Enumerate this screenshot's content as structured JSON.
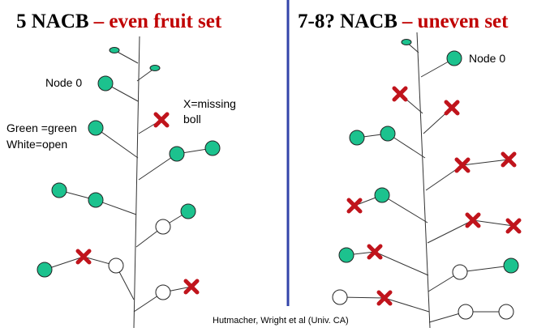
{
  "left": {
    "title_main": "5 NACB",
    "title_sub": "– even fruit set",
    "node_label": "Node 0",
    "missing_label": [
      "X=missing",
      "boll"
    ],
    "legend": [
      "Green =green",
      "White=open"
    ]
  },
  "right": {
    "title_main": "7-8? NACB",
    "title_sub": "– uneven set",
    "node_label": "Node 0"
  },
  "credit": "Hutmacher, Wright et al (Univ. CA)"
}
